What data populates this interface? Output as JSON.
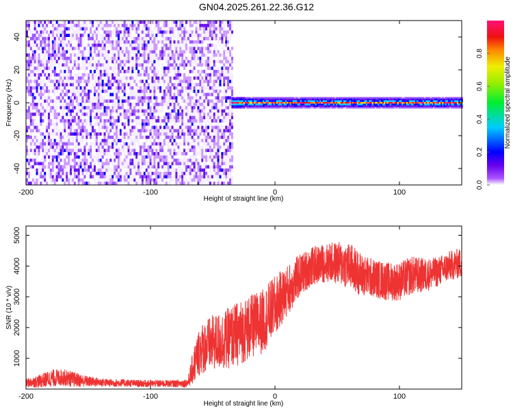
{
  "title": "GN04.2025.261.22.36.G12",
  "chart_data": [
    {
      "type": "heatmap",
      "xlabel": "Height of straight line (km)",
      "ylabel": "Frequency (Hz)",
      "xlim": [
        -200,
        150
      ],
      "ylim": [
        -50,
        50
      ],
      "xticks": [
        -200,
        -100,
        0,
        100
      ],
      "yticks": [
        -40,
        -20,
        0,
        20,
        40
      ],
      "colorbar": {
        "label": "Normalized spectral amplitude",
        "range": [
          0,
          1
        ],
        "ticks": [
          "0.0",
          "0.2",
          "0.4",
          "0.6",
          "0.8"
        ]
      },
      "regions": [
        {
          "x": [
            -200,
            -35
          ],
          "description_value": "noise",
          "mean_amplitude": 0.1
        },
        {
          "x": [
            -35,
            150
          ],
          "frequency_hz": 0,
          "peak_amplitude": 1.0
        }
      ]
    },
    {
      "type": "line",
      "xlabel": "Height of straight line (km)",
      "ylabel": "SNR (10 * v/v)",
      "xlim": [
        -200,
        150
      ],
      "ylim": [
        0,
        5300
      ],
      "xticks": [
        -200,
        -100,
        0,
        100
      ],
      "yticks": [
        1000,
        2000,
        3000,
        4000,
        5000
      ],
      "color": "#ee3333",
      "series": [
        {
          "name": "SNR",
          "x": [
            -200,
            -190,
            -180,
            -170,
            -160,
            -150,
            -140,
            -130,
            -120,
            -110,
            -100,
            -90,
            -80,
            -70,
            -65,
            -60,
            -50,
            -40,
            -30,
            -20,
            -10,
            0,
            10,
            20,
            30,
            40,
            50,
            60,
            70,
            80,
            90,
            100,
            110,
            120,
            130,
            140,
            150
          ],
          "mean": [
            200,
            250,
            350,
            380,
            300,
            250,
            220,
            200,
            200,
            180,
            180,
            180,
            180,
            200,
            800,
            1300,
            1500,
            1600,
            1800,
            2000,
            2200,
            2700,
            3200,
            3700,
            4000,
            4100,
            4100,
            4000,
            3700,
            3600,
            3500,
            3500,
            3700,
            3700,
            3800,
            4000,
            4100
          ],
          "spread": [
            200,
            300,
            400,
            400,
            350,
            250,
            200,
            180,
            180,
            170,
            170,
            170,
            170,
            200,
            900,
            1200,
            1300,
            1400,
            1500,
            1500,
            1500,
            1400,
            1200,
            1000,
            900,
            900,
            1000,
            1100,
            1000,
            900,
            900,
            900,
            900,
            800,
            700,
            700,
            700
          ]
        }
      ]
    }
  ]
}
